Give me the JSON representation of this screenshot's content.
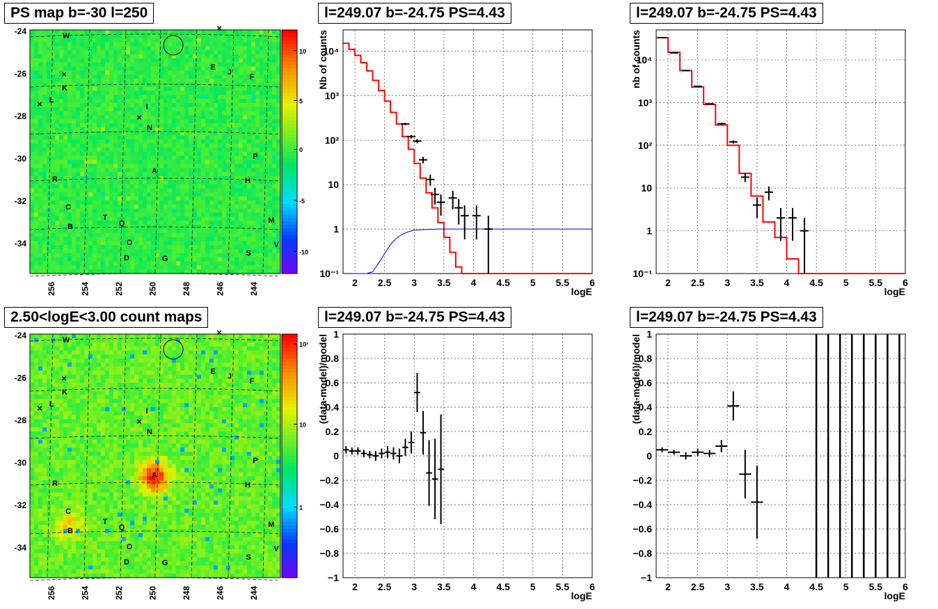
{
  "titles": {
    "ps_map": "PS map b=-30 l=250",
    "count_map": "2.50<logE<3.00 count maps",
    "spec_left": "l=249.07 b=-24.75 PS=4.43",
    "spec_right": "l=249.07 b=-24.75 PS=4.43",
    "res_left": "l=249.07 b=-24.75 PS=4.43",
    "res_right": "l=249.07 b=-24.75 PS=4.43"
  },
  "colors": {
    "model": "#ff0000",
    "exposure": "#0000cc",
    "data": "#000000"
  },
  "chart_data": [
    {
      "id": "ps_map",
      "type": "heatmap",
      "title": "PS map b=-30 l=250",
      "x_ticks": [
        "256",
        "254",
        "252",
        "250",
        "248",
        "246",
        "244"
      ],
      "y_ticks": [
        "-24",
        "-26",
        "-28",
        "-30",
        "-32",
        "-34"
      ],
      "colorbar": {
        "ticks": [
          "10",
          "5",
          "0",
          "-5",
          "-10"
        ],
        "range": [
          -12,
          12
        ]
      },
      "sources": [
        "W",
        "E",
        "J",
        "F",
        "K",
        "L",
        "I",
        "N",
        "P",
        "A",
        "R",
        "H",
        "C",
        "T",
        "Q",
        "B",
        "M",
        "O",
        "D",
        "G",
        "S",
        "V"
      ]
    },
    {
      "id": "count_map",
      "type": "heatmap",
      "title": "2.50<logE<3.00 count maps",
      "x_ticks": [
        "256",
        "254",
        "252",
        "250",
        "248",
        "246",
        "244"
      ],
      "y_ticks": [
        "-24",
        "-26",
        "-28",
        "-30",
        "-32",
        "-34"
      ],
      "colorbar": {
        "ticks": [
          "10²",
          "10",
          "1"
        ],
        "scale": "log"
      },
      "sources": [
        "W",
        "E",
        "J",
        "F",
        "K",
        "L",
        "I",
        "N",
        "P",
        "A",
        "R",
        "H",
        "C",
        "T",
        "Q",
        "B",
        "M",
        "O",
        "D",
        "G",
        "S",
        "V"
      ]
    },
    {
      "id": "spec_left",
      "type": "line",
      "title": "l=249.07 b=-24.75 PS=4.43",
      "xlabel": "logE",
      "ylabel": "Nb of counts",
      "xlim": [
        1.8,
        6
      ],
      "ylim": [
        0.1,
        30000
      ],
      "yscale": "log",
      "grid": true,
      "x_ticks": [
        "2",
        "2.5",
        "3",
        "3.5",
        "4",
        "4.5",
        "5",
        "5.5",
        "6"
      ],
      "y_ticks": [
        "10⁻¹",
        "1",
        "10",
        "10²",
        "10³",
        "10⁴"
      ],
      "model_bins": [
        1.8,
        1.9,
        2.0,
        2.1,
        2.2,
        2.3,
        2.4,
        2.5,
        2.6,
        2.7,
        2.8,
        2.9,
        3.0,
        3.1,
        3.2,
        3.3,
        3.4,
        3.5,
        3.6,
        3.7,
        3.8,
        3.9,
        4.0,
        4.1,
        6.0
      ],
      "model_values": [
        15000,
        11000,
        8000,
        5500,
        3600,
        2200,
        1300,
        750,
        420,
        230,
        120,
        62,
        30,
        14,
        6.5,
        3,
        1.4,
        0.65,
        0.3,
        0.14,
        0.1,
        0.1,
        0.1,
        0.1
      ],
      "data_points": [
        {
          "x": 2.85,
          "y": 230
        },
        {
          "x": 2.95,
          "y": 120
        },
        {
          "x": 3.05,
          "y": 95
        },
        {
          "x": 3.15,
          "y": 36
        },
        {
          "x": 3.27,
          "y": 13
        },
        {
          "x": 3.35,
          "y": 6
        },
        {
          "x": 3.45,
          "y": 4
        },
        {
          "x": 3.65,
          "y": 5
        },
        {
          "x": 3.75,
          "y": 3
        },
        {
          "x": 3.85,
          "y": 2
        },
        {
          "x": 4.05,
          "y": 2
        },
        {
          "x": 4.25,
          "y": 1
        }
      ],
      "exposure": [
        [
          2.0,
          0.1
        ],
        [
          2.2,
          0.1
        ],
        [
          2.3,
          0.11
        ],
        [
          2.4,
          0.17
        ],
        [
          2.5,
          0.28
        ],
        [
          2.6,
          0.45
        ],
        [
          2.7,
          0.62
        ],
        [
          2.8,
          0.77
        ],
        [
          2.9,
          0.87
        ],
        [
          3.0,
          0.94
        ],
        [
          3.2,
          0.98
        ],
        [
          3.4,
          1.0
        ],
        [
          6.0,
          1.0
        ]
      ]
    },
    {
      "id": "spec_right",
      "type": "line",
      "title": "l=249.07 b=-24.75 PS=4.43",
      "xlabel": "logE",
      "ylabel": "nb of counts",
      "xlim": [
        1.8,
        6
      ],
      "ylim": [
        0.1,
        50000
      ],
      "yscale": "log",
      "grid": true,
      "x_ticks": [
        "2",
        "2.5",
        "3",
        "3.5",
        "4",
        "4.5",
        "5",
        "5.5",
        "6"
      ],
      "y_ticks": [
        "10⁻¹",
        "1",
        "10",
        "10²",
        "10³",
        "10⁴"
      ],
      "model_bins": [
        1.8,
        2.0,
        2.2,
        2.4,
        2.6,
        2.8,
        3.0,
        3.2,
        3.4,
        3.6,
        3.8,
        4.0,
        4.2,
        4.4,
        6.0
      ],
      "model_values": [
        33000,
        15000,
        5600,
        2300,
        900,
        300,
        100,
        22,
        6.5,
        1.6,
        0.7,
        0.22,
        0.1,
        0.1
      ],
      "data_points": [
        {
          "x": 1.9,
          "y": 33000
        },
        {
          "x": 2.1,
          "y": 14500
        },
        {
          "x": 2.3,
          "y": 5600
        },
        {
          "x": 2.5,
          "y": 2400
        },
        {
          "x": 2.7,
          "y": 930
        },
        {
          "x": 2.9,
          "y": 320
        },
        {
          "x": 3.1,
          "y": 120
        },
        {
          "x": 3.3,
          "y": 18
        },
        {
          "x": 3.5,
          "y": 4
        },
        {
          "x": 3.7,
          "y": 8
        },
        {
          "x": 3.9,
          "y": 2
        },
        {
          "x": 4.1,
          "y": 2
        },
        {
          "x": 4.3,
          "y": 1
        }
      ]
    },
    {
      "id": "res_left",
      "type": "scatter",
      "title": "l=249.07 b=-24.75 PS=4.43",
      "xlabel": "logE",
      "ylabel": "(data-model)/model",
      "xlim": [
        1.8,
        6
      ],
      "ylim": [
        -1,
        1
      ],
      "grid": true,
      "x_ticks": [
        "2",
        "2.5",
        "3",
        "3.5",
        "4",
        "4.5",
        "5",
        "5.5",
        "6"
      ],
      "y_ticks": [
        "1",
        "0.8",
        "0.6",
        "0.4",
        "0.2",
        "0",
        "−0.2",
        "−0.4",
        "−0.6",
        "−0.8",
        "−1"
      ],
      "points": [
        {
          "x": 1.85,
          "y": 0.05,
          "e": 0.03
        },
        {
          "x": 1.95,
          "y": 0.04,
          "e": 0.03
        },
        {
          "x": 2.05,
          "y": 0.04,
          "e": 0.03
        },
        {
          "x": 2.15,
          "y": 0.02,
          "e": 0.03
        },
        {
          "x": 2.25,
          "y": 0.01,
          "e": 0.03
        },
        {
          "x": 2.35,
          "y": 0.0,
          "e": 0.04
        },
        {
          "x": 2.45,
          "y": 0.02,
          "e": 0.04
        },
        {
          "x": 2.55,
          "y": 0.03,
          "e": 0.05
        },
        {
          "x": 2.65,
          "y": 0.02,
          "e": 0.05
        },
        {
          "x": 2.75,
          "y": 0.0,
          "e": 0.06
        },
        {
          "x": 2.85,
          "y": 0.07,
          "e": 0.07
        },
        {
          "x": 2.95,
          "y": 0.11,
          "e": 0.09
        },
        {
          "x": 3.05,
          "y": 0.52,
          "e": 0.16
        },
        {
          "x": 3.15,
          "y": 0.19,
          "e": 0.18
        },
        {
          "x": 3.25,
          "y": -0.14,
          "e": 0.27
        },
        {
          "x": 3.35,
          "y": -0.19,
          "e": 0.33
        },
        {
          "x": 3.45,
          "y": -0.11,
          "e": 0.45
        }
      ]
    },
    {
      "id": "res_right",
      "type": "scatter",
      "title": "l=249.07 b=-24.75 PS=4.43",
      "xlabel": "logE",
      "ylabel": "(data-model)/model",
      "xlim": [
        1.8,
        6
      ],
      "ylim": [
        -1,
        1
      ],
      "grid": true,
      "x_ticks": [
        "2",
        "2.5",
        "3",
        "3.5",
        "4",
        "4.5",
        "5",
        "5.5",
        "6"
      ],
      "y_ticks": [
        "1",
        "0.8",
        "0.6",
        "0.4",
        "0.2",
        "0",
        "−0.2",
        "−0.4",
        "−0.6",
        "−0.8",
        "−1"
      ],
      "points": [
        {
          "x": 1.9,
          "y": 0.05,
          "e": 0.02
        },
        {
          "x": 2.1,
          "y": 0.03,
          "e": 0.02
        },
        {
          "x": 2.3,
          "y": 0.0,
          "e": 0.03
        },
        {
          "x": 2.5,
          "y": 0.03,
          "e": 0.03
        },
        {
          "x": 2.7,
          "y": 0.02,
          "e": 0.03
        },
        {
          "x": 2.9,
          "y": 0.08,
          "e": 0.05
        },
        {
          "x": 3.1,
          "y": 0.41,
          "e": 0.12
        },
        {
          "x": 3.3,
          "y": -0.15,
          "e": 0.2
        },
        {
          "x": 3.5,
          "y": -0.38,
          "e": 0.3
        }
      ],
      "vertical_lines_x": [
        4.5,
        4.7,
        4.9,
        5.1,
        5.3,
        5.5,
        5.7,
        5.9
      ]
    }
  ]
}
